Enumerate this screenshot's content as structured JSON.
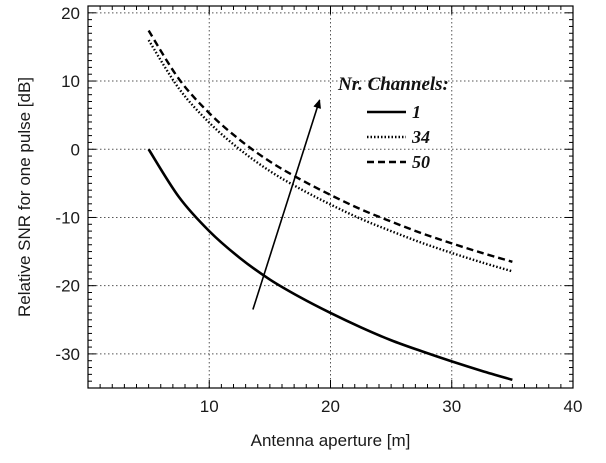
{
  "chart_data": {
    "type": "line",
    "title": "",
    "xlabel": "Antenna aperture [m]",
    "ylabel": "Relative SNR for one pulse [dB]",
    "xlim": [
      0,
      40
    ],
    "ylim": [
      -35,
      21
    ],
    "xticks": [
      10,
      20,
      30,
      40
    ],
    "yticks": [
      20,
      10,
      0,
      -10,
      -20,
      -30
    ],
    "xtick_labels": [
      "10",
      "20",
      "30",
      "40"
    ],
    "ytick_labels": [
      "20",
      "10",
      "0",
      "-10",
      "-20",
      "-30"
    ],
    "grid": true,
    "legend": {
      "title": "Nr. Channels:",
      "placement": "top-right",
      "entries": [
        "1",
        "34",
        "50"
      ]
    },
    "series": [
      {
        "name": "1",
        "style": "solid",
        "color": "#000000",
        "x": [
          5,
          7.5,
          10,
          12.5,
          15,
          17.5,
          20,
          22.5,
          25,
          27.5,
          30,
          32.5,
          35
        ],
        "y": [
          0,
          -7.0,
          -12.0,
          -15.9,
          -19.1,
          -21.7,
          -24.0,
          -26.1,
          -28.0,
          -29.6,
          -31.1,
          -32.5,
          -33.8
        ]
      },
      {
        "name": "34",
        "style": "dotted",
        "color": "#000000",
        "x": [
          5,
          7.5,
          10,
          12.5,
          15,
          17.5,
          20,
          22.5,
          25,
          27.5,
          30,
          32.5,
          35
        ],
        "y": [
          16.0,
          8.9,
          3.9,
          0,
          -3.2,
          -5.8,
          -8.1,
          -10.2,
          -12.0,
          -13.7,
          -15.2,
          -16.6,
          -17.9
        ]
      },
      {
        "name": "50",
        "style": "dashed",
        "color": "#000000",
        "x": [
          5,
          7.5,
          10,
          12.5,
          15,
          17.5,
          20,
          22.5,
          25,
          27.5,
          30,
          32.5,
          35
        ],
        "y": [
          17.4,
          10.3,
          5.3,
          1.4,
          -1.8,
          -4.4,
          -6.7,
          -8.8,
          -10.6,
          -12.3,
          -13.8,
          -15.2,
          -16.5
        ]
      }
    ],
    "annotations": [
      {
        "type": "arrow",
        "from": [
          13.6,
          -23.5
        ],
        "to": [
          19.1,
          7.2
        ]
      }
    ]
  }
}
